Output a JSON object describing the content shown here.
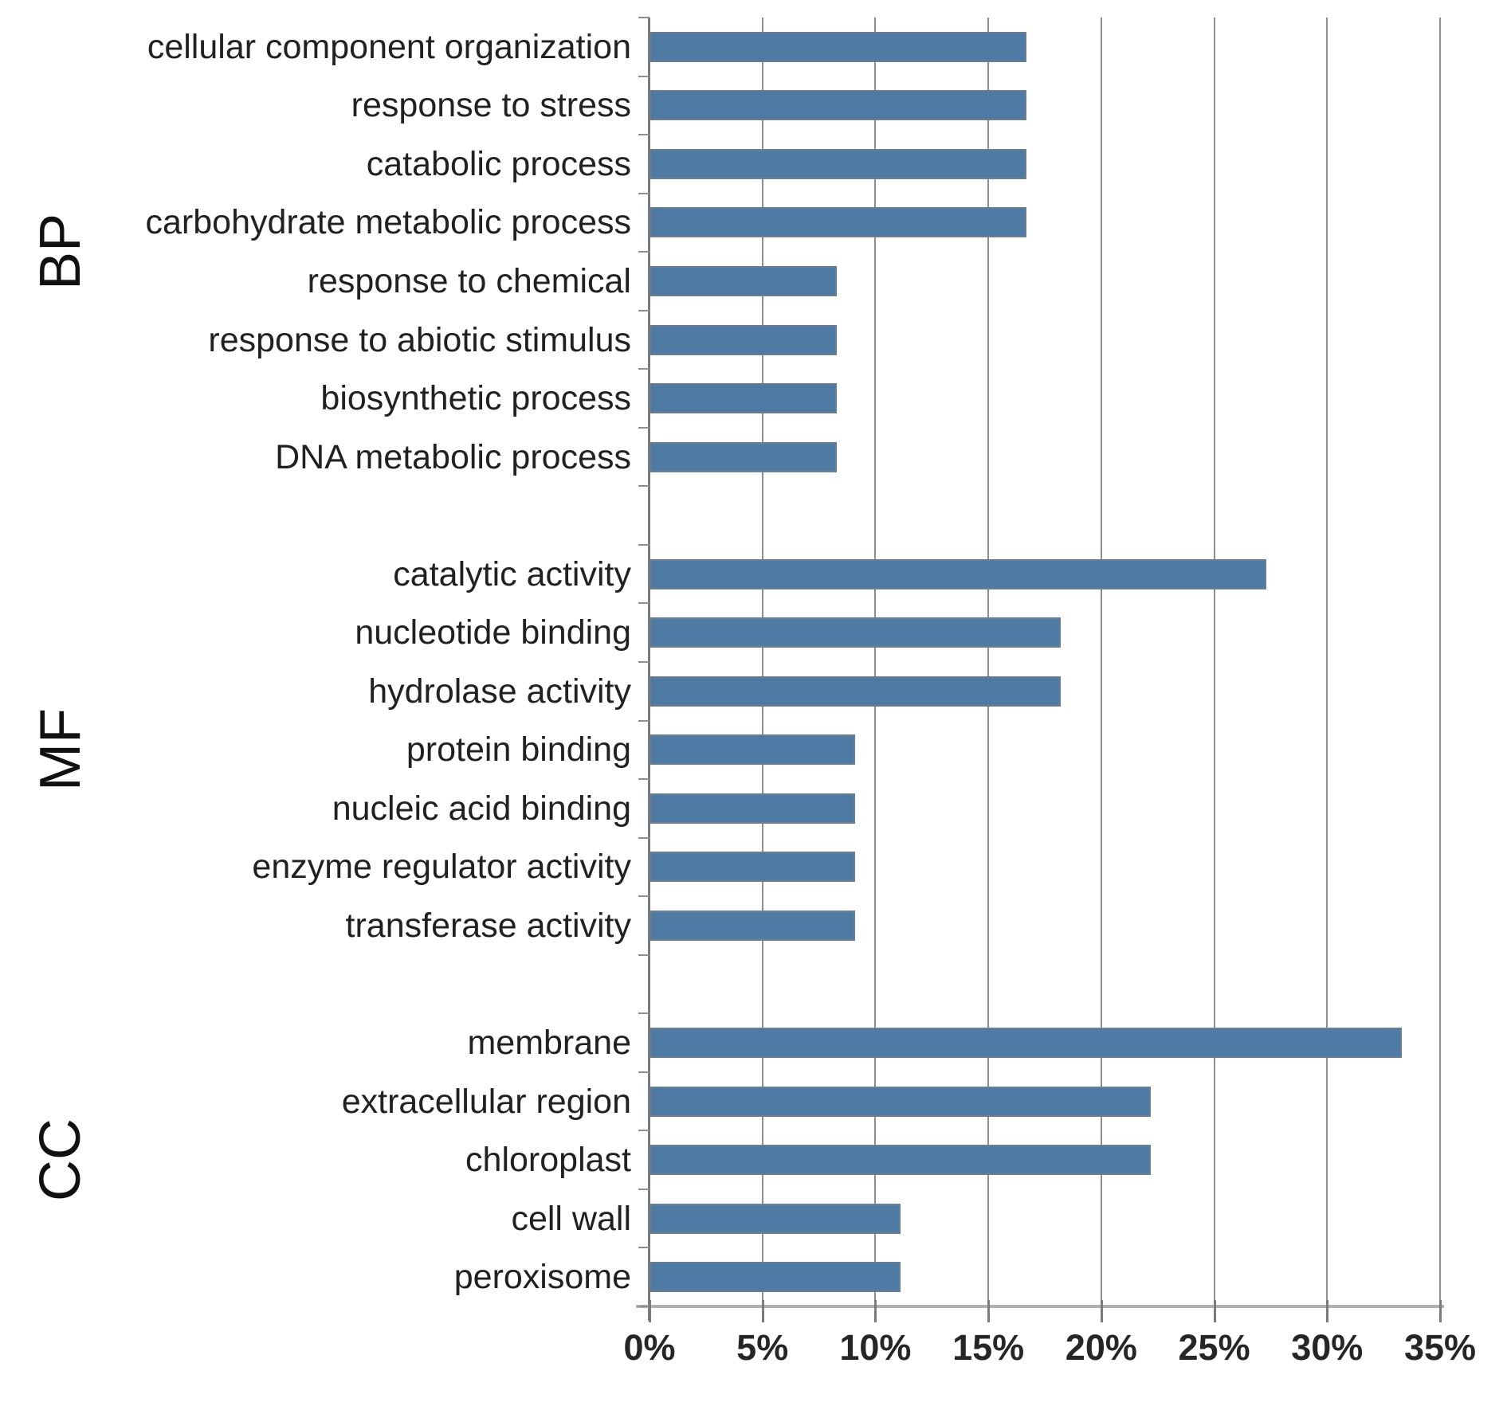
{
  "figure": {
    "description": "Horizontal bar chart of GO term annotation percentages grouped by BP, MF and CC"
  },
  "chart_data": {
    "type": "bar",
    "orientation": "horizontal",
    "title": "",
    "xlabel": "",
    "ylabel": "",
    "xlim": [
      0,
      35
    ],
    "x_tick_labels": [
      "0%",
      "5%",
      "10%",
      "15%",
      "20%",
      "25%",
      "30%",
      "35%"
    ],
    "grid": true,
    "legend": false,
    "bar_color": "#4e7aa3",
    "bar_border_color": "#6b7e8f",
    "gridline_color": "#8f8f8f",
    "groups": [
      {
        "label": "BP",
        "items": [
          {
            "label": "cellular component organization",
            "value": 16.7
          },
          {
            "label": "response to stress",
            "value": 16.7
          },
          {
            "label": "catabolic process",
            "value": 16.7
          },
          {
            "label": "carbohydrate metabolic process",
            "value": 16.7
          },
          {
            "label": "response to chemical",
            "value": 8.3
          },
          {
            "label": "response to abiotic stimulus",
            "value": 8.3
          },
          {
            "label": "biosynthetic process",
            "value": 8.3
          },
          {
            "label": "DNA metabolic process",
            "value": 8.3
          }
        ]
      },
      {
        "label": "MF",
        "items": [
          {
            "label": "catalytic activity",
            "value": 27.3
          },
          {
            "label": "nucleotide binding",
            "value": 18.2
          },
          {
            "label": "hydrolase activity",
            "value": 18.2
          },
          {
            "label": "protein binding",
            "value": 9.1
          },
          {
            "label": "nucleic acid binding",
            "value": 9.1
          },
          {
            "label": "enzyme regulator activity",
            "value": 9.1
          },
          {
            "label": "transferase activity",
            "value": 9.1
          }
        ]
      },
      {
        "label": "CC",
        "items": [
          {
            "label": "membrane",
            "value": 33.3
          },
          {
            "label": "extracellular region",
            "value": 22.2
          },
          {
            "label": "chloroplast",
            "value": 22.2
          },
          {
            "label": "cell wall",
            "value": 11.1
          },
          {
            "label": "peroxisome",
            "value": 11.1
          }
        ]
      }
    ]
  }
}
